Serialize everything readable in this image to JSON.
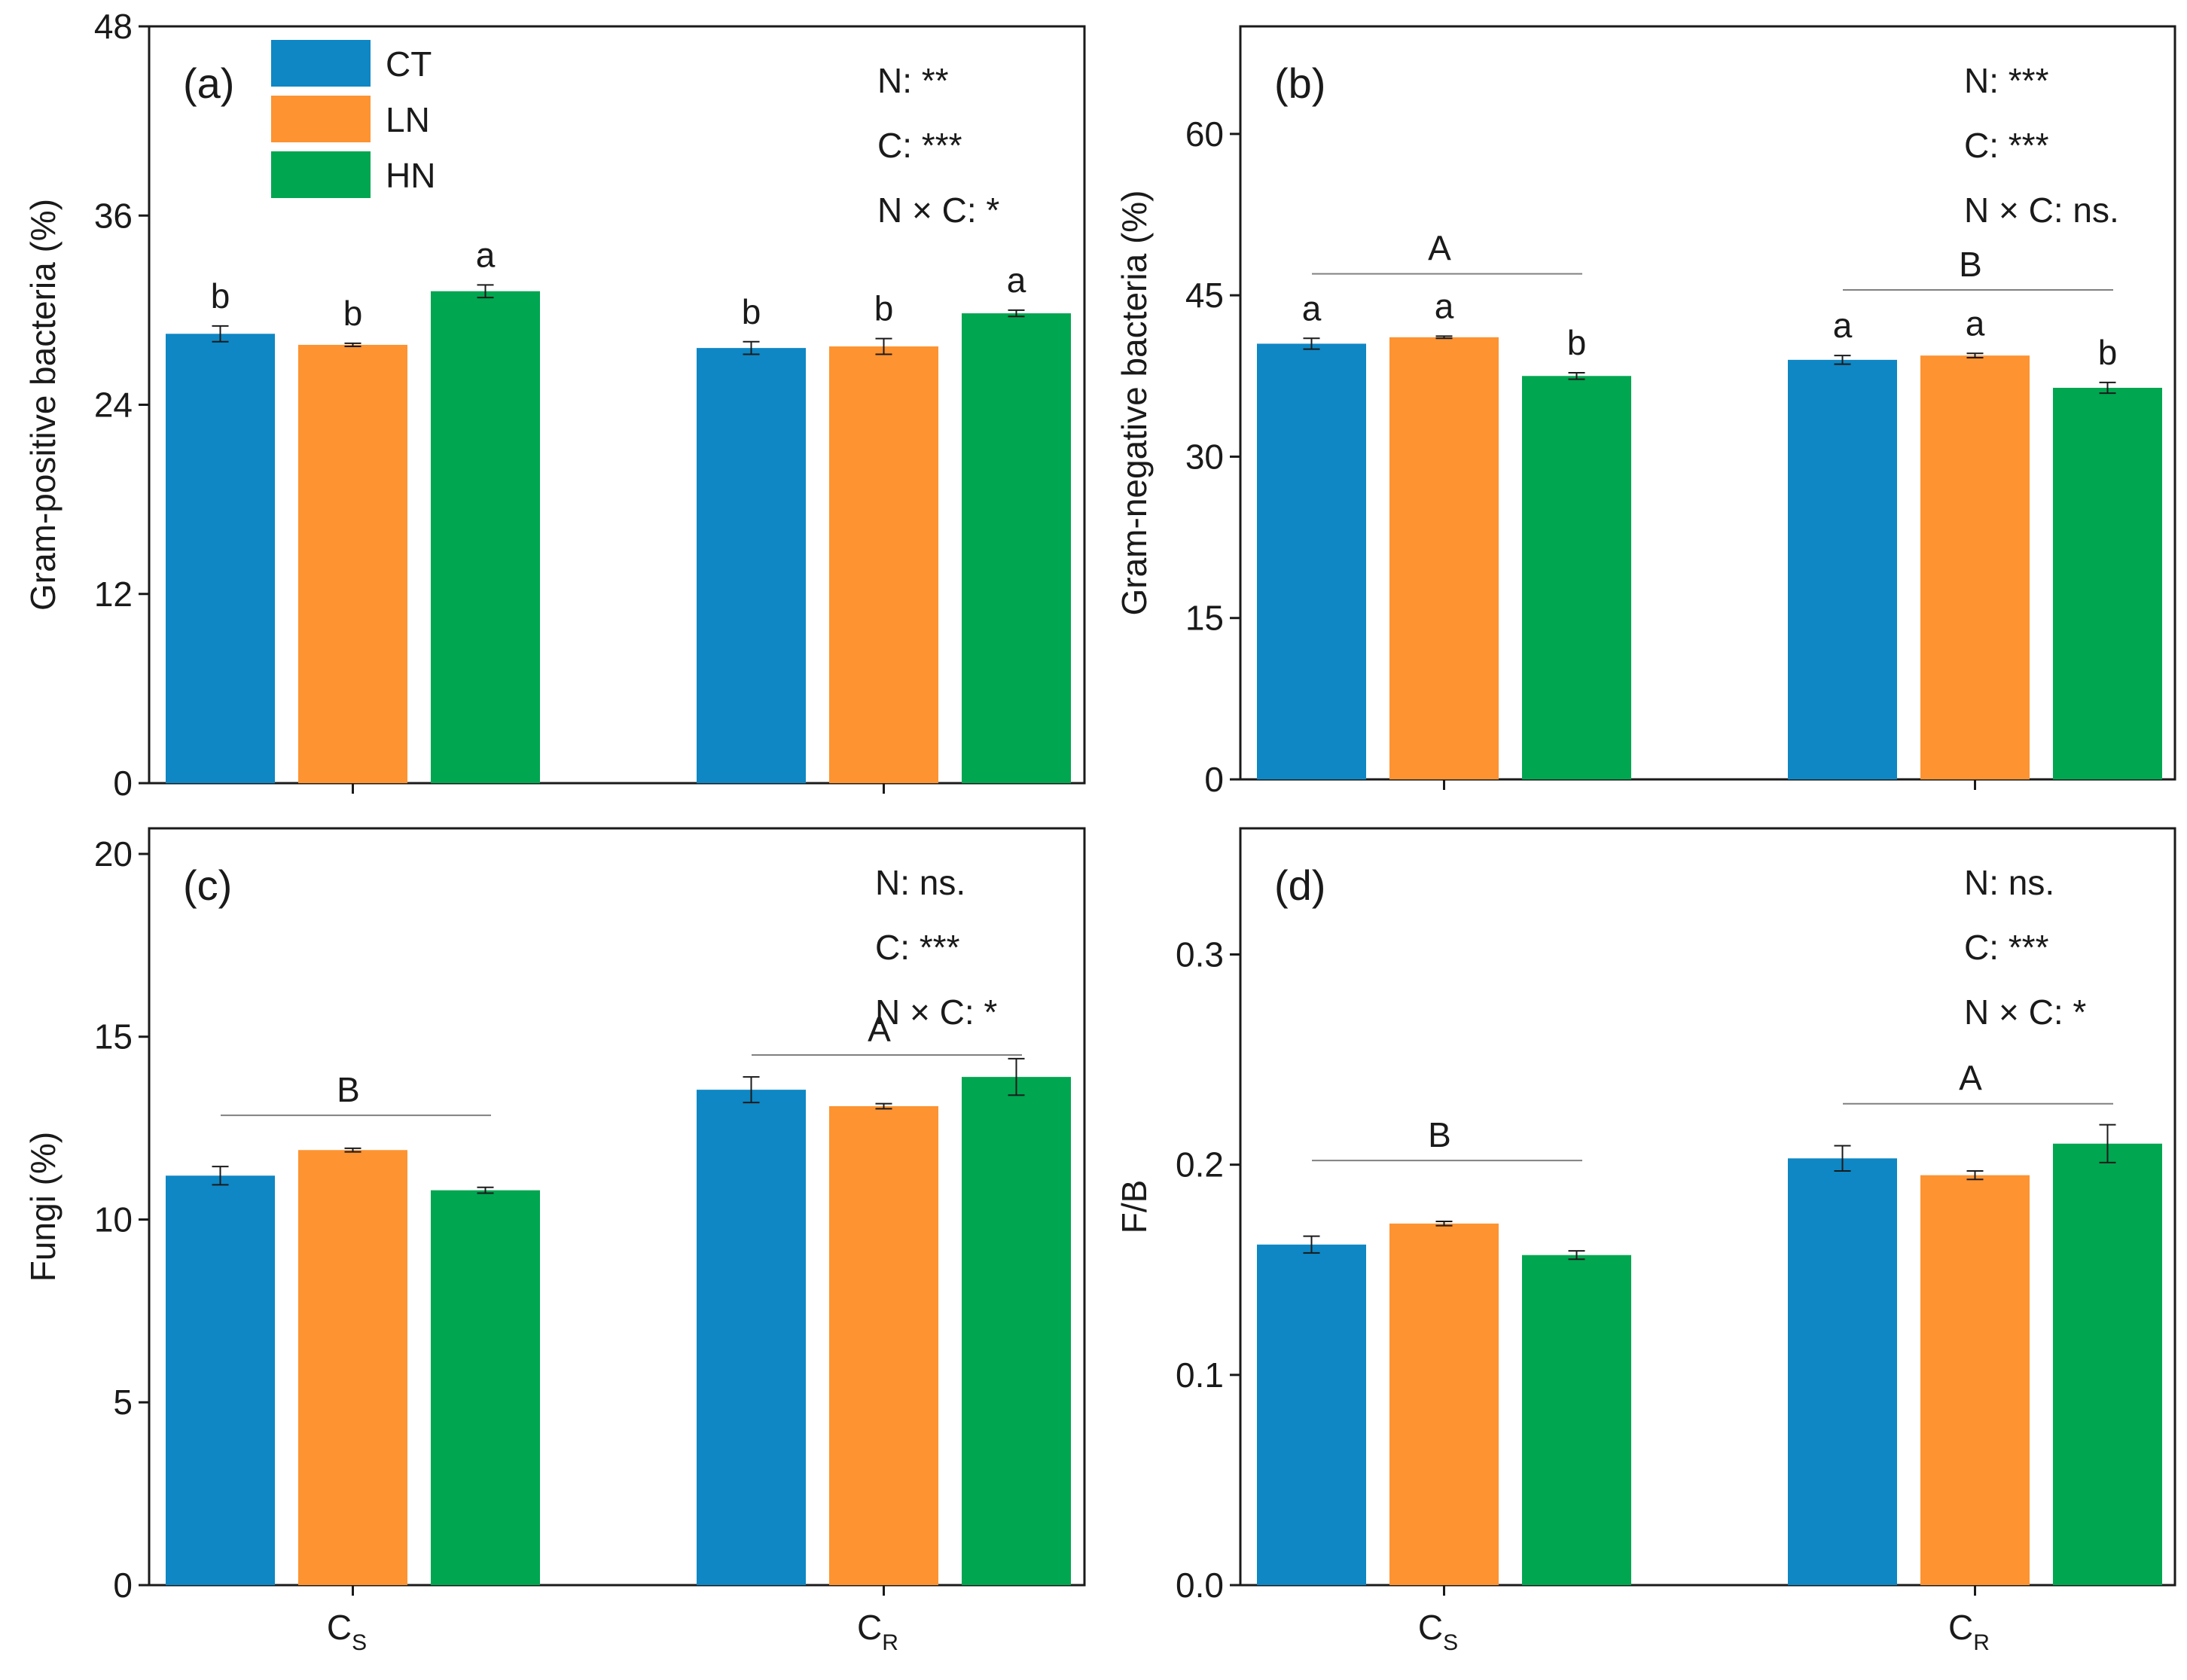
{
  "figure": {
    "x_group_labels": [
      {
        "main": "C",
        "sub": "S"
      },
      {
        "main": "C",
        "sub": "R"
      }
    ]
  },
  "colors": {
    "CT": "#0e87c4",
    "LN": "#fd9331",
    "HN": "#00a650",
    "axis": "#1a1a1a",
    "line": "#808080"
  },
  "chart_data": [
    {
      "id": "a",
      "type": "bar",
      "panel_label": "(a)",
      "ylabel": "Gram-positive bacteria (%)",
      "ylim": [
        0,
        48
      ],
      "yticks": [
        0,
        12,
        24,
        36,
        48
      ],
      "categories": [
        "CS",
        "CR"
      ],
      "series": [
        {
          "name": "CT",
          "values": [
            28.5,
            27.6
          ],
          "errors": [
            0.5,
            0.4
          ]
        },
        {
          "name": "LN",
          "values": [
            27.8,
            27.7
          ],
          "errors": [
            0.1,
            0.5
          ]
        },
        {
          "name": "HN",
          "values": [
            31.2,
            29.8
          ],
          "errors": [
            0.4,
            0.2
          ]
        }
      ],
      "bar_letters": [
        [
          "b",
          "b"
        ],
        [
          "b",
          "b"
        ],
        [
          "a",
          "a"
        ]
      ],
      "group_lines": [],
      "stats": [
        "N: **",
        "C: ***",
        "N × C: *"
      ],
      "legend": [
        "CT",
        "LN",
        "HN"
      ],
      "legend_position": "top-left"
    },
    {
      "id": "b",
      "type": "bar",
      "panel_label": "(b)",
      "ylabel": "Gram-negative bacteria (%)",
      "ylim": [
        0,
        70
      ],
      "yticks": [
        0,
        15,
        30,
        45,
        60
      ],
      "categories": [
        "CS",
        "CR"
      ],
      "series": [
        {
          "name": "CT",
          "values": [
            40.5,
            39.0
          ],
          "errors": [
            0.5,
            0.4
          ]
        },
        {
          "name": "LN",
          "values": [
            41.1,
            39.4
          ],
          "errors": [
            0.1,
            0.2
          ]
        },
        {
          "name": "HN",
          "values": [
            37.5,
            36.4
          ],
          "errors": [
            0.3,
            0.5
          ]
        }
      ],
      "bar_letters": [
        [
          "a",
          "a"
        ],
        [
          "a",
          "a"
        ],
        [
          "b",
          "b"
        ]
      ],
      "group_lines": [
        {
          "letter": "A",
          "level": 47.0
        },
        {
          "letter": "B",
          "level": 45.5
        }
      ],
      "stats": [
        "N: ***",
        "C: ***",
        "N × C: ns."
      ]
    },
    {
      "id": "c",
      "type": "bar",
      "panel_label": "(c)",
      "ylabel": "Fungi (%)",
      "ylim": [
        0,
        20.7
      ],
      "yticks": [
        0,
        5,
        10,
        15,
        20
      ],
      "categories": [
        "CS",
        "CR"
      ],
      "series": [
        {
          "name": "CT",
          "values": [
            11.2,
            13.55
          ],
          "errors": [
            0.25,
            0.35
          ]
        },
        {
          "name": "LN",
          "values": [
            11.9,
            13.1
          ],
          "errors": [
            0.05,
            0.07
          ]
        },
        {
          "name": "HN",
          "values": [
            10.8,
            13.9
          ],
          "errors": [
            0.08,
            0.5
          ]
        }
      ],
      "bar_letters": [],
      "group_lines": [
        {
          "letter": "B",
          "level": 12.85
        },
        {
          "letter": "A",
          "level": 14.5
        }
      ],
      "stats": [
        "N: ns.",
        "C: ***",
        "N × C: *"
      ]
    },
    {
      "id": "d",
      "type": "bar",
      "panel_label": "(d)",
      "ylabel": "F/B",
      "ylim": [
        0,
        0.36
      ],
      "yticks": [
        0.0,
        0.1,
        0.2,
        0.3
      ],
      "ytick_labels": [
        "0.0",
        "0.1",
        "0.2",
        "0.3"
      ],
      "categories": [
        "CS",
        "CR"
      ],
      "series": [
        {
          "name": "CT",
          "values": [
            0.162,
            0.203
          ],
          "errors": [
            0.004,
            0.006
          ]
        },
        {
          "name": "LN",
          "values": [
            0.172,
            0.195
          ],
          "errors": [
            0.001,
            0.002
          ]
        },
        {
          "name": "HN",
          "values": [
            0.157,
            0.21
          ],
          "errors": [
            0.002,
            0.009
          ]
        }
      ],
      "bar_letters": [],
      "group_lines": [
        {
          "letter": "B",
          "level": 0.202
        },
        {
          "letter": "A",
          "level": 0.229
        }
      ],
      "stats": [
        "N: ns.",
        "C: ***",
        "N × C: *"
      ]
    }
  ]
}
